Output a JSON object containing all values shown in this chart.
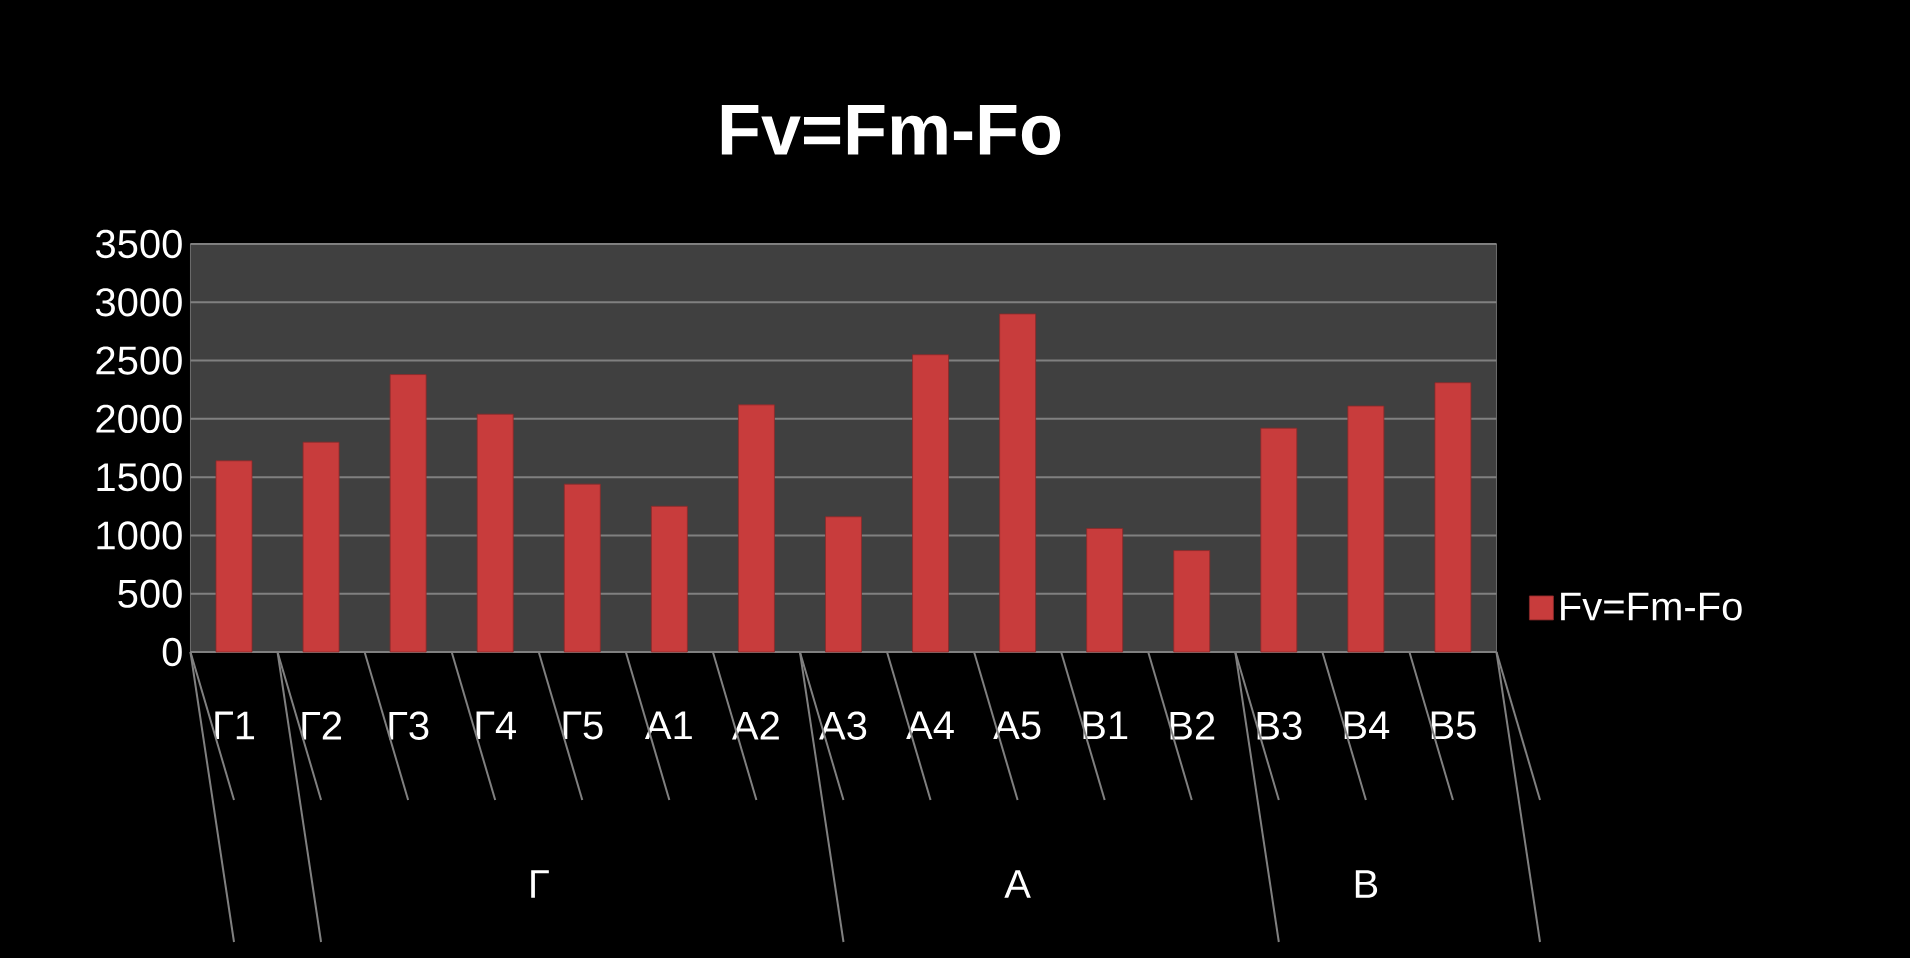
{
  "chart_data": {
    "type": "bar",
    "title": "Fv=Fm-Fo",
    "categories": [
      "Г1",
      "Г2",
      "Г3",
      "Г4",
      "Г5",
      "А1",
      "А2",
      "А3",
      "А4",
      "А5",
      "В1",
      "В2",
      "В3",
      "В4",
      "В5"
    ],
    "series": [
      {
        "name": "Fv=Fm-Fo",
        "color": "#c83c3c",
        "values": [
          1640,
          1800,
          2380,
          2040,
          1440,
          1250,
          2120,
          1160,
          2550,
          2900,
          1060,
          870,
          1920,
          2110,
          2310
        ]
      }
    ],
    "annotations": [
      "Г",
      "А",
      "В"
    ],
    "ylim": [
      0,
      3500
    ],
    "yticks": [
      0,
      500,
      1000,
      1500,
      2000,
      2500,
      3000,
      3500
    ],
    "grid": "y",
    "legend": "right"
  }
}
